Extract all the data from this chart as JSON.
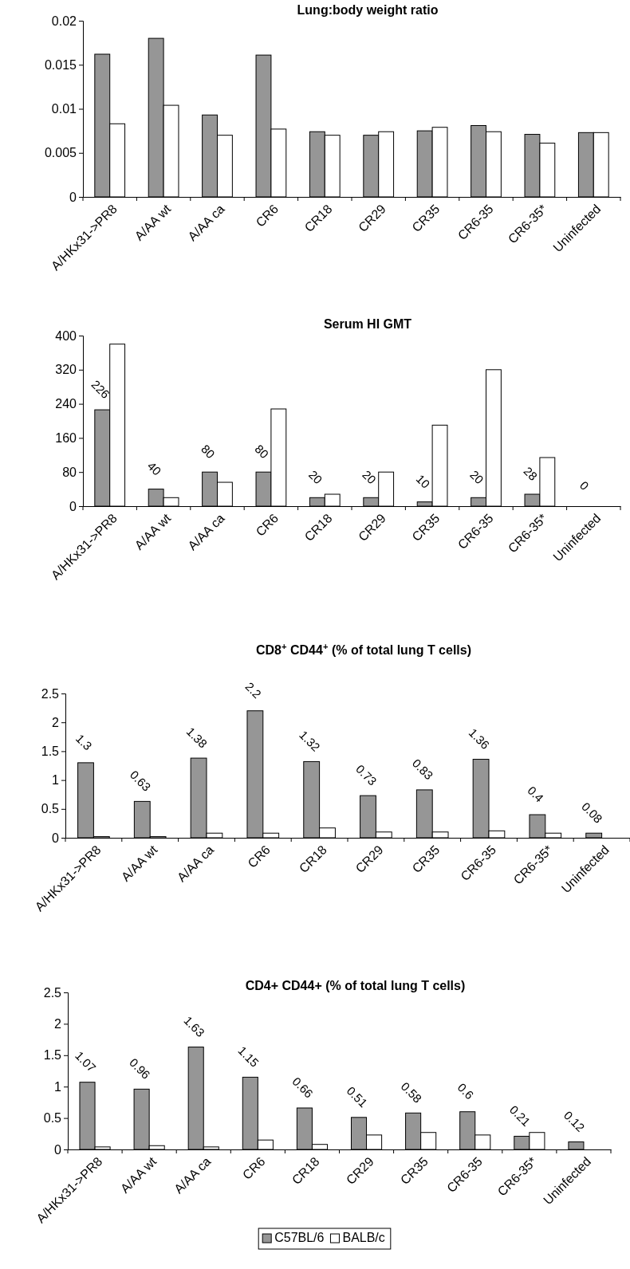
{
  "chart_data": [
    {
      "type": "bar",
      "title": "Lung:body weight ratio",
      "categories": [
        "A/HKx31->PR8",
        "A/AA wt",
        "A/AA ca",
        "CR6",
        "CR18",
        "CR29",
        "CR35",
        "CR6-35",
        "CR6-35*",
        "Uninfected"
      ],
      "series": [
        {
          "color": "#969696",
          "values": [
            0.0162,
            0.018,
            0.0093,
            0.0161,
            0.0074,
            0.007,
            0.0075,
            0.0081,
            0.0071,
            0.0073
          ]
        },
        {
          "color": "#ffffff",
          "values": [
            0.0083,
            0.0104,
            0.007,
            0.0077,
            0.007,
            0.0074,
            0.0079,
            0.0074,
            0.0061,
            0.0073
          ]
        }
      ],
      "ylim": [
        0,
        0.02
      ],
      "yticks": [
        0,
        0.005,
        0.01,
        0.015,
        0.02
      ],
      "grid": false,
      "legend": false
    },
    {
      "type": "bar",
      "title": "Serum HI GMT",
      "categories": [
        "A/HKx31->PR8",
        "A/AA wt",
        "A/AA ca",
        "CR6",
        "CR18",
        "CR29",
        "CR35",
        "CR6-35",
        "CR6-35*",
        "Uninfected"
      ],
      "series": [
        {
          "color": "#969696",
          "values": [
            226,
            40,
            80,
            80,
            20,
            20,
            10,
            20,
            28,
            0
          ],
          "value_labels": [
            "226",
            "40",
            "80",
            "80",
            "20",
            "20",
            "10",
            "20",
            "28",
            "0"
          ]
        },
        {
          "color": "#ffffff",
          "values": [
            380,
            20,
            56,
            228,
            28,
            80,
            190,
            320,
            114,
            null
          ]
        }
      ],
      "ylim": [
        0,
        400
      ],
      "yticks": [
        0,
        80,
        160,
        240,
        320,
        400
      ],
      "grid": false,
      "legend": false
    },
    {
      "type": "bar",
      "title": "CD8$^{+}$ CD44$^{+}$ (% of total lung T cells)",
      "categories": [
        "A/HKx31->PR8",
        "A/AA wt",
        "A/AA ca",
        "CR6",
        "CR18",
        "CR29",
        "CR35",
        "CR6-35",
        "CR6-35*",
        "Uninfected"
      ],
      "series": [
        {
          "color": "#969696",
          "values": [
            1.3,
            0.63,
            1.38,
            2.2,
            1.32,
            0.73,
            0.83,
            1.36,
            0.4,
            0.08
          ],
          "value_labels": [
            "1.3",
            "0.63",
            "1.38",
            "2.2",
            "1.32",
            "0.73",
            "0.83",
            "1.36",
            "0.4",
            "0.08"
          ]
        },
        {
          "color": "#ffffff",
          "values": [
            0.02,
            0.02,
            0.08,
            0.08,
            0.17,
            0.1,
            0.1,
            0.12,
            0.08,
            null
          ]
        }
      ],
      "ylim": [
        0,
        2.5
      ],
      "yticks": [
        0,
        0.5,
        1,
        1.5,
        2,
        2.5
      ],
      "grid": false,
      "legend": false
    },
    {
      "type": "bar",
      "title": "CD4+ CD44+ (% of total lung T cells)",
      "categories": [
        "A/HKx31->PR8",
        "A/AA wt",
        "A/AA ca",
        "CR6",
        "CR18",
        "CR29",
        "CR35",
        "CR6-35",
        "CR6-35*",
        "Uninfected"
      ],
      "series": [
        {
          "name": "C57BL/6",
          "color": "#969696",
          "values": [
            1.07,
            0.96,
            1.63,
            1.15,
            0.66,
            0.51,
            0.58,
            0.6,
            0.21,
            0.12
          ],
          "value_labels": [
            "1.07",
            "0.96",
            "1.63",
            "1.15",
            "0.66",
            "0.51",
            "0.58",
            "0.6",
            "0.21",
            "0.12"
          ]
        },
        {
          "name": "BALB/c",
          "color": "#ffffff",
          "values": [
            0.04,
            0.06,
            0.04,
            0.15,
            0.08,
            0.23,
            0.27,
            0.23,
            0.27,
            null
          ]
        }
      ],
      "ylim": [
        0,
        2.5
      ],
      "yticks": [
        0,
        0.5,
        1,
        1.5,
        2,
        2.5
      ],
      "grid": false,
      "legend": "bottom"
    }
  ]
}
